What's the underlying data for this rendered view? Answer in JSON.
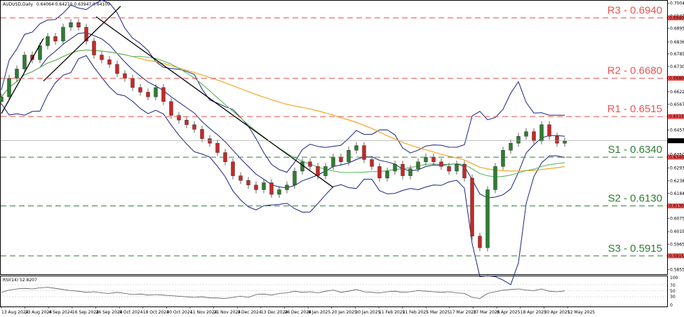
{
  "header": {
    "symbol_label": "AUDUSD,Daily",
    "ohlc": "0.64064 0.64210 0.63947 0.64109"
  },
  "rsi_panel": {
    "label": "RSI(14) 52.8207",
    "levels": [
      "100",
      "70",
      "50",
      "30",
      "0"
    ]
  },
  "colors": {
    "resistance": "#ef5350",
    "support": "#2e7d32",
    "bollinger": "#1a237e",
    "ma_orange": "#f5a623",
    "ma_green": "#66bb6a",
    "trendline": "#000000",
    "candle_up": "#2e7d32",
    "candle_down": "#c62828"
  },
  "levels": [
    {
      "name": "R3",
      "label": "R3 - 0.6940",
      "price": 0.694,
      "tag": "0.69400",
      "kind": "resistance"
    },
    {
      "name": "R2",
      "label": "R2 - 0.6680",
      "price": 0.668,
      "tag": "0.66800",
      "kind": "resistance"
    },
    {
      "name": "R1",
      "label": "R1 - 0.6515",
      "price": 0.6515,
      "tag": "0.65150",
      "kind": "resistance"
    },
    {
      "name": "S1",
      "label": "S1 - 0.6340",
      "price": 0.634,
      "tag": "0.63400",
      "kind": "support"
    },
    {
      "name": "S2",
      "label": "S2 - 0.6130",
      "price": 0.613,
      "tag": "0.61300",
      "kind": "support"
    },
    {
      "name": "S3",
      "label": "S3 - 0.5915",
      "price": 0.5915,
      "tag": "0.59150",
      "kind": "support"
    }
  ],
  "current_price": {
    "price": 0.64109,
    "tag": "0.64109"
  },
  "chart_data": {
    "type": "candlestick",
    "title": "AUDUSD,Daily",
    "ylim": [
      0.5845,
      0.7005
    ],
    "y_ticks": [
      "0.70040",
      "0.69475",
      "0.68950",
      "0.68360",
      "0.67850",
      "0.67305",
      "0.66785",
      "0.66220",
      "0.65675",
      "0.65130",
      "0.64570",
      "0.63505",
      "0.62935",
      "0.62380",
      "0.61840",
      "0.60755",
      "0.60195",
      "0.59650",
      "0.58555"
    ],
    "x_labels": [
      "13 Aug 2024",
      "23 Aug 2024",
      "4 Sep 2024",
      "16 Sep 2024",
      "26 Sep 2024",
      "8 Oct 2024",
      "18 Oct 2024",
      "30 Oct 2024",
      "11 Nov 2024",
      "21 Nov 2024",
      "3 Dec 2024",
      "13 Dec 2024",
      "26 Dec 2024",
      "8 Jan 2025",
      "20 Jan 2025",
      "30 Jan 2025",
      "11 Feb 2025",
      "21 Feb 2025",
      "5 Mar 2025",
      "17 Mar 2025",
      "27 Mar 2025",
      "8 Apr 2025",
      "18 Apr 2025",
      "30 Apr 2025",
      "12 May 2025"
    ],
    "close_path": [
      0.66,
      0.668,
      0.672,
      0.678,
      0.676,
      0.682,
      0.686,
      0.684,
      0.69,
      0.692,
      0.69,
      0.684,
      0.678,
      0.676,
      0.674,
      0.67,
      0.668,
      0.664,
      0.662,
      0.66,
      0.664,
      0.658,
      0.652,
      0.65,
      0.648,
      0.646,
      0.642,
      0.64,
      0.636,
      0.632,
      0.626,
      0.624,
      0.622,
      0.62,
      0.623,
      0.618,
      0.62,
      0.622,
      0.628,
      0.632,
      0.63,
      0.626,
      0.63,
      0.634,
      0.632,
      0.637,
      0.639,
      0.633,
      0.63,
      0.625,
      0.628,
      0.631,
      0.626,
      0.629,
      0.632,
      0.634,
      0.632,
      0.63,
      0.628,
      0.631,
      0.625,
      0.6,
      0.595,
      0.62,
      0.63,
      0.637,
      0.64,
      0.643,
      0.645,
      0.641,
      0.648,
      0.643,
      0.64,
      0.641
    ],
    "rsi_ylim": [
      0,
      100
    ],
    "rsi_path": [
      48,
      56,
      60,
      62,
      60,
      64,
      66,
      62,
      58,
      54,
      52,
      48,
      50,
      46,
      44,
      48,
      44,
      40,
      42,
      38,
      40,
      38,
      36,
      34,
      32,
      30,
      32,
      28,
      28,
      26,
      30,
      34,
      30,
      40,
      42,
      38,
      44,
      46,
      52,
      48,
      50,
      46,
      52,
      56,
      48,
      52,
      58,
      50,
      48,
      46,
      50,
      52,
      48,
      50,
      54,
      52,
      50,
      48,
      50,
      46,
      44,
      30,
      26,
      44,
      50,
      56,
      58,
      60,
      56,
      54,
      60,
      52,
      50,
      53
    ]
  }
}
